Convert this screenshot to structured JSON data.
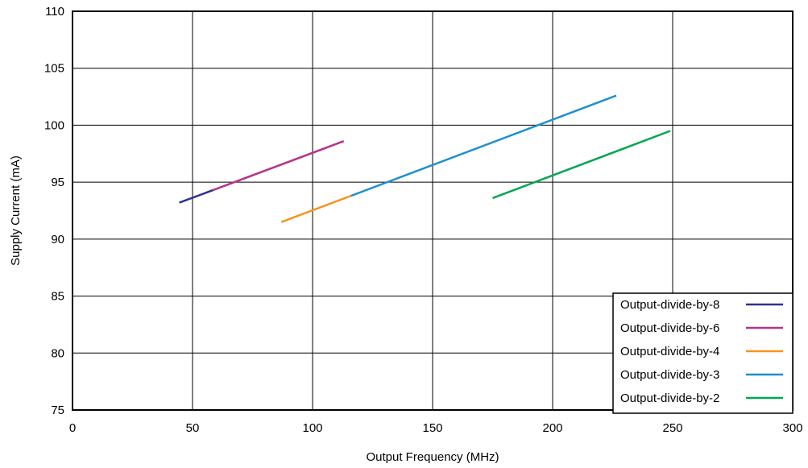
{
  "chart_data": {
    "type": "line",
    "title": "",
    "xlabel": "Output Frequency (MHz)",
    "ylabel": "Supply Current (mA)",
    "xlim": [
      0,
      300
    ],
    "ylim": [
      75,
      110
    ],
    "xticks": [
      0,
      50,
      100,
      150,
      200,
      250,
      300
    ],
    "yticks": [
      75,
      80,
      85,
      90,
      95,
      100,
      105,
      110
    ],
    "grid": true,
    "legend_position": "bottom-right",
    "series": [
      {
        "name": "Output-divide-by-8",
        "color": "#2e3192",
        "x": [
          44.5,
          58.5
        ],
        "y": [
          93.2,
          94.3
        ]
      },
      {
        "name": "Output-divide-by-6",
        "color": "#b5338a",
        "x": [
          58.5,
          113
        ],
        "y": [
          94.3,
          98.6
        ]
      },
      {
        "name": "Output-divide-by-4",
        "color": "#f7941d",
        "x": [
          87,
          116
        ],
        "y": [
          91.5,
          93.8
        ]
      },
      {
        "name": "Output-divide-by-3",
        "color": "#1b8fd1",
        "x": [
          116,
          226.5
        ],
        "y": [
          93.8,
          102.6
        ]
      },
      {
        "name": "Output-divide-by-2",
        "color": "#00a651",
        "x": [
          175,
          249
        ],
        "y": [
          93.6,
          99.5
        ]
      }
    ]
  }
}
